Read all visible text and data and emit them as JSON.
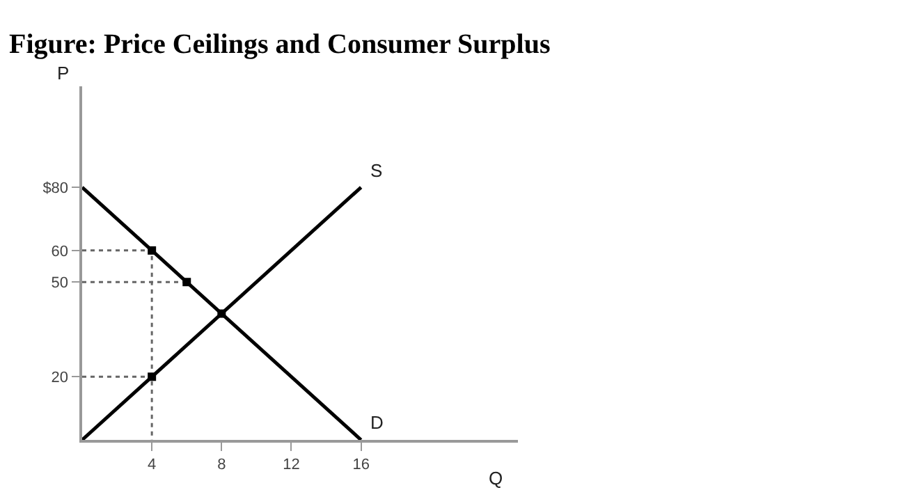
{
  "chart_data": {
    "type": "line",
    "title": "Figure: Price Ceilings and Consumer Surplus",
    "xlabel": "Q",
    "ylabel": "P",
    "xlim": [
      0,
      25
    ],
    "ylim": [
      0,
      112
    ],
    "xticks": [
      4,
      8,
      12,
      16
    ],
    "yticks": [
      {
        "value": 80,
        "label": "$80"
      },
      60,
      50,
      20
    ],
    "series": [
      {
        "color": "#000000",
        "x": [
          0,
          16
        ],
        "values": [
          80,
          0
        ]
      },
      {
        "color": "#000000",
        "x": [
          0,
          16
        ],
        "values": [
          0,
          80
        ]
      },
      {
        "color": "#666666",
        "line_style": "dotted",
        "x": [
          0,
          4,
          4
        ],
        "values": [
          60,
          60,
          0
        ]
      },
      {
        "color": "#666666",
        "line_style": "dotted",
        "x": [
          0,
          6
        ],
        "values": [
          50,
          50
        ]
      },
      {
        "color": "#666666",
        "line_style": "dotted",
        "x": [
          0,
          4
        ],
        "values": [
          20,
          20
        ]
      },
      {
        "type": "scatter",
        "color": "#000000",
        "marker": "square",
        "x": [
          4,
          6,
          8,
          4
        ],
        "values": [
          60,
          50,
          40,
          20
        ]
      }
    ],
    "annotations": [
      {
        "text": "S",
        "x": 16,
        "y": 80
      },
      {
        "text": "D",
        "x": 16,
        "y": 0
      }
    ],
    "legend": false
  }
}
